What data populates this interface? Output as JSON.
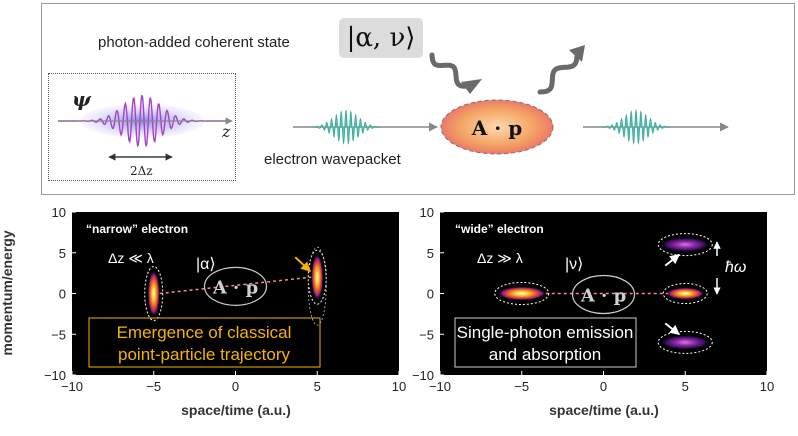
{
  "header": {
    "title": "photon-added coherent state",
    "state_label": "|α, ν⟩",
    "operator_label": "A · p",
    "wavepacket_label": "electron wavepacket",
    "psi_label": "ψ",
    "z_label": "z",
    "width_label": "2Δz"
  },
  "colors": {
    "teal_packet": "#4fc2b3",
    "purple_packet": "#8a3fc9",
    "operator_fill": "#f3a463",
    "classical_text": "#f5b301"
  },
  "panels": [
    {
      "regime_title": "“narrow” electron",
      "condition": "Δz ≪ λ",
      "state_label": "|α⟩",
      "operator_label": "A · p",
      "caption_lines": [
        "Emergence of classical",
        "point-particle trajectory"
      ]
    },
    {
      "regime_title": "“wide” electron",
      "condition": "Δz ≫ λ",
      "state_label": "|ν⟩",
      "operator_label": "A · p",
      "energy_label": "ħω",
      "caption_lines": [
        "Single-photon emission",
        "and absorption"
      ]
    }
  ],
  "chart_data": [
    {
      "type": "heatmap",
      "title": "",
      "xlabel": "space/time (a.u.)",
      "ylabel": "momentum/energy",
      "xlim": [
        -10,
        10
      ],
      "ylim": [
        -10,
        10
      ],
      "xticks": [
        "−10",
        "−5",
        "0",
        "5",
        "10"
      ],
      "yticks": [
        "10",
        "5",
        "0",
        "−5",
        "−10"
      ],
      "blobs": [
        {
          "x": -5,
          "y": 0,
          "shape": "tall"
        },
        {
          "x": 5,
          "y": 2,
          "shape": "tall"
        }
      ],
      "trajectory": [
        [
          -5,
          0
        ],
        [
          5,
          2
        ]
      ]
    },
    {
      "type": "heatmap",
      "title": "",
      "xlabel": "space/time (a.u.)",
      "ylabel": "",
      "xlim": [
        -10,
        10
      ],
      "ylim": [
        -10,
        10
      ],
      "xticks": [
        "−10",
        "−5",
        "0",
        "5",
        "10"
      ],
      "yticks": [
        "10",
        "5",
        "0",
        "−5",
        "−10"
      ],
      "blobs": [
        {
          "x": -5,
          "y": 0,
          "shape": "wide"
        },
        {
          "x": 5,
          "y": 0,
          "shape": "wide"
        },
        {
          "x": 5,
          "y": 6,
          "shape": "wide"
        },
        {
          "x": 5,
          "y": -6,
          "shape": "wide"
        }
      ],
      "trajectory": [
        [
          -5,
          0
        ],
        [
          5,
          0
        ]
      ]
    }
  ]
}
